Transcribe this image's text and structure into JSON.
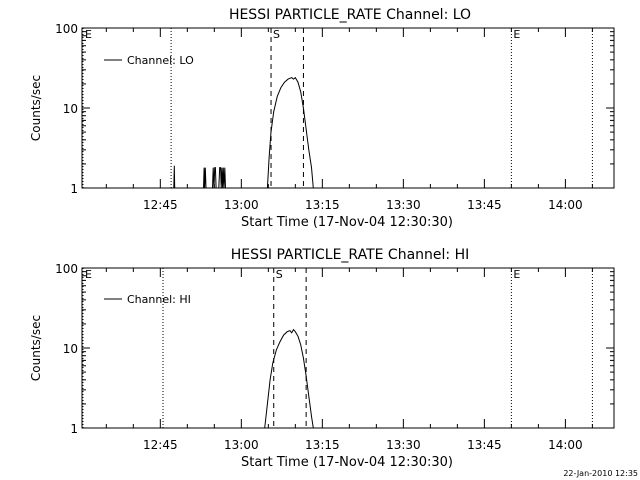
{
  "footer_timestamp": "22-Jan-2010 12:35",
  "chart_data": [
    {
      "type": "line",
      "title": "HESSI PARTICLE_RATE Channel: LO",
      "xlabel": "Start Time (17-Nov-04 12:30:30)",
      "ylabel": "Counts/sec",
      "y_scale": "log",
      "ylim": [
        1,
        100
      ],
      "y_ticks": [
        {
          "v": 1,
          "label": "1"
        },
        {
          "v": 10,
          "label": "10"
        },
        {
          "v": 100,
          "label": "100"
        }
      ],
      "xlim": [
        "12:30:30",
        "14:09:00"
      ],
      "x_ticks": [
        {
          "t": "12:45",
          "label": "12:45"
        },
        {
          "t": "13:00",
          "label": "13:00"
        },
        {
          "t": "13:15",
          "label": "13:15"
        },
        {
          "t": "13:30",
          "label": "13:30"
        },
        {
          "t": "13:45",
          "label": "13:45"
        },
        {
          "t": "14:00",
          "label": "14:00"
        }
      ],
      "legend": {
        "position": "top-left",
        "label": "Channel: LO"
      },
      "markers": [
        {
          "t": "12:30:30",
          "style": "dotted",
          "label": "E"
        },
        {
          "t": "12:47:00",
          "style": "dotted",
          "label": ""
        },
        {
          "t": "13:05:30",
          "style": "dashed",
          "label": "S"
        },
        {
          "t": "13:11:30",
          "style": "dashed",
          "label": ""
        },
        {
          "t": "13:50:00",
          "style": "dotted",
          "label": "E"
        },
        {
          "t": "14:05:00",
          "style": "dotted",
          "label": ""
        }
      ],
      "series": [
        {
          "name": "Channel: LO",
          "points": [
            [
              "12:47:30",
              1
            ],
            [
              "12:47:35",
              1.9
            ],
            [
              "12:47:40",
              1
            ],
            [
              "12:53:00",
              1
            ],
            [
              "12:53:06",
              1.8
            ],
            [
              "12:53:12",
              1
            ],
            [
              "12:53:20",
              1.8
            ],
            [
              "12:53:28",
              1
            ],
            [
              "12:54:40",
              1
            ],
            [
              "12:54:48",
              1.8
            ],
            [
              "12:54:56",
              1
            ],
            [
              "12:55:04",
              1.8
            ],
            [
              "12:55:12",
              1.8
            ],
            [
              "12:55:20",
              1
            ],
            [
              "12:55:50",
              1
            ],
            [
              "12:56:00",
              1.8
            ],
            [
              "12:56:10",
              1.8
            ],
            [
              "12:56:16",
              1
            ],
            [
              "12:56:24",
              1.8
            ],
            [
              "12:56:32",
              1
            ],
            [
              "12:56:40",
              1.8
            ],
            [
              "12:56:48",
              1
            ],
            [
              "12:56:56",
              1.8
            ],
            [
              "12:57:04",
              1
            ],
            [
              "13:04:50",
              1
            ],
            [
              "13:05:10",
              2.5
            ],
            [
              "13:05:30",
              5
            ],
            [
              "13:06:00",
              9
            ],
            [
              "13:06:40",
              14
            ],
            [
              "13:07:20",
              18
            ],
            [
              "13:08:00",
              21
            ],
            [
              "13:08:40",
              23
            ],
            [
              "13:09:20",
              24
            ],
            [
              "13:09:40",
              23
            ],
            [
              "13:10:00",
              24
            ],
            [
              "13:10:30",
              21
            ],
            [
              "13:11:00",
              16
            ],
            [
              "13:11:30",
              10
            ],
            [
              "13:12:00",
              5.5
            ],
            [
              "13:12:30",
              3
            ],
            [
              "13:13:00",
              1.8
            ],
            [
              "13:13:20",
              1
            ]
          ]
        }
      ]
    },
    {
      "type": "line",
      "title": "HESSI PARTICLE_RATE Channel: HI",
      "xlabel": "Start Time (17-Nov-04 12:30:30)",
      "ylabel": "Counts/sec",
      "y_scale": "log",
      "ylim": [
        1,
        100
      ],
      "y_ticks": [
        {
          "v": 1,
          "label": "1"
        },
        {
          "v": 10,
          "label": "10"
        },
        {
          "v": 100,
          "label": "100"
        }
      ],
      "xlim": [
        "12:30:30",
        "14:09:00"
      ],
      "x_ticks": [
        {
          "t": "12:45",
          "label": "12:45"
        },
        {
          "t": "13:00",
          "label": "13:00"
        },
        {
          "t": "13:15",
          "label": "13:15"
        },
        {
          "t": "13:30",
          "label": "13:30"
        },
        {
          "t": "13:45",
          "label": "13:45"
        },
        {
          "t": "14:00",
          "label": "14:00"
        }
      ],
      "legend": {
        "position": "top-left",
        "label": "Channel: HI"
      },
      "markers": [
        {
          "t": "12:30:30",
          "style": "dotted",
          "label": "E"
        },
        {
          "t": "12:45:30",
          "style": "dotted",
          "label": ""
        },
        {
          "t": "13:06:00",
          "style": "dashed",
          "label": "S"
        },
        {
          "t": "13:12:00",
          "style": "dashed",
          "label": ""
        },
        {
          "t": "13:50:00",
          "style": "dotted",
          "label": "E"
        },
        {
          "t": "14:05:00",
          "style": "dotted",
          "label": ""
        }
      ],
      "series": [
        {
          "name": "Channel: HI",
          "points": [
            [
              "13:04:20",
              1
            ],
            [
              "13:04:50",
              2
            ],
            [
              "13:05:20",
              4
            ],
            [
              "13:05:50",
              6.5
            ],
            [
              "13:06:30",
              9.5
            ],
            [
              "13:07:10",
              12
            ],
            [
              "13:07:50",
              14.5
            ],
            [
              "13:08:30",
              16
            ],
            [
              "13:09:00",
              16.5
            ],
            [
              "13:09:20",
              15.5
            ],
            [
              "13:09:40",
              17
            ],
            [
              "13:10:00",
              16
            ],
            [
              "13:10:30",
              14
            ],
            [
              "13:11:00",
              11
            ],
            [
              "13:11:30",
              7.5
            ],
            [
              "13:12:00",
              4.5
            ],
            [
              "13:12:30",
              2.5
            ],
            [
              "13:13:00",
              1.4
            ],
            [
              "13:13:20",
              1
            ]
          ]
        }
      ]
    }
  ]
}
